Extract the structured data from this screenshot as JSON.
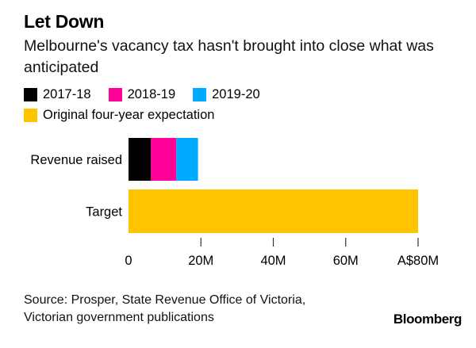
{
  "title": "Let Down",
  "subtitle": "Melbourne's vacancy tax hasn't brought into close what was anticipated",
  "colors": {
    "s2017": "#000000",
    "s2018": "#ff0099",
    "s2019": "#00aaff",
    "target": "#ffc400",
    "axis": "#333333"
  },
  "legend": [
    {
      "label": "2017-18",
      "color": "#000000"
    },
    {
      "label": "2018-19",
      "color": "#ff0099"
    },
    {
      "label": "2019-20",
      "color": "#00aaff"
    },
    {
      "label": "Original four-year expectation",
      "color": "#ffc400"
    }
  ],
  "chart_data": {
    "type": "bar",
    "orientation": "horizontal",
    "stacked": true,
    "title": "Let Down",
    "subtitle": "Melbourne's vacancy tax hasn't brought into close what was anticipated",
    "categories": [
      "Revenue raised",
      "Target"
    ],
    "series": [
      {
        "name": "2017-18",
        "values": [
          6.2,
          0
        ]
      },
      {
        "name": "2018-19",
        "values": [
          7,
          0
        ]
      },
      {
        "name": "2019-20",
        "values": [
          6,
          0
        ]
      },
      {
        "name": "Original four-year expectation",
        "values": [
          0,
          80
        ]
      }
    ],
    "xlim": [
      0,
      80
    ],
    "xticks": [
      0,
      20,
      40,
      60,
      80
    ],
    "xtick_labels": [
      "0",
      "20M",
      "40M",
      "60M",
      "A$80M"
    ],
    "xlabel": "",
    "ylabel": "",
    "grid": false
  },
  "source": {
    "line1": "Source: Prosper, State Revenue Office of Victoria,",
    "line2": "Victorian government publications"
  },
  "brand": "Bloomberg"
}
